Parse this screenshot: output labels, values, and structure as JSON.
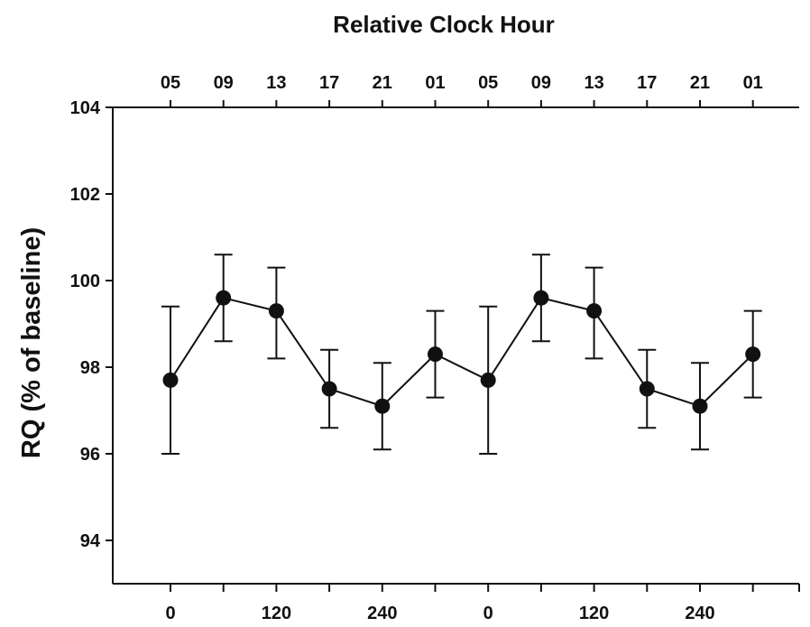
{
  "chart_data": {
    "type": "scatter",
    "title": "Relative Clock Hour",
    "xlabel": "",
    "ylabel": "RQ (% of baseline)",
    "bottom_tick_labels": [
      "0",
      "120",
      "240",
      "0",
      "120",
      "240"
    ],
    "top_tick_labels": [
      "05",
      "09",
      "13",
      "17",
      "21",
      "01",
      "05",
      "09",
      "13",
      "17",
      "21",
      "01"
    ],
    "ylim": [
      93,
      104
    ],
    "y_ticks": [
      94,
      96,
      98,
      100,
      102,
      104
    ],
    "grid": false,
    "legend": "none",
    "series": [
      {
        "values": [
          97.7,
          99.6,
          99.3,
          97.5,
          97.1,
          98.3,
          97.7,
          99.6,
          99.3,
          97.5,
          97.1,
          98.3
        ],
        "error_low": [
          96.0,
          98.6,
          98.2,
          96.6,
          96.1,
          97.3,
          96.0,
          98.6,
          98.2,
          96.6,
          96.1,
          97.3
        ],
        "error_high": [
          99.4,
          100.6,
          100.3,
          98.4,
          98.1,
          99.3,
          99.4,
          100.6,
          100.3,
          98.4,
          98.1,
          99.3
        ]
      }
    ]
  }
}
